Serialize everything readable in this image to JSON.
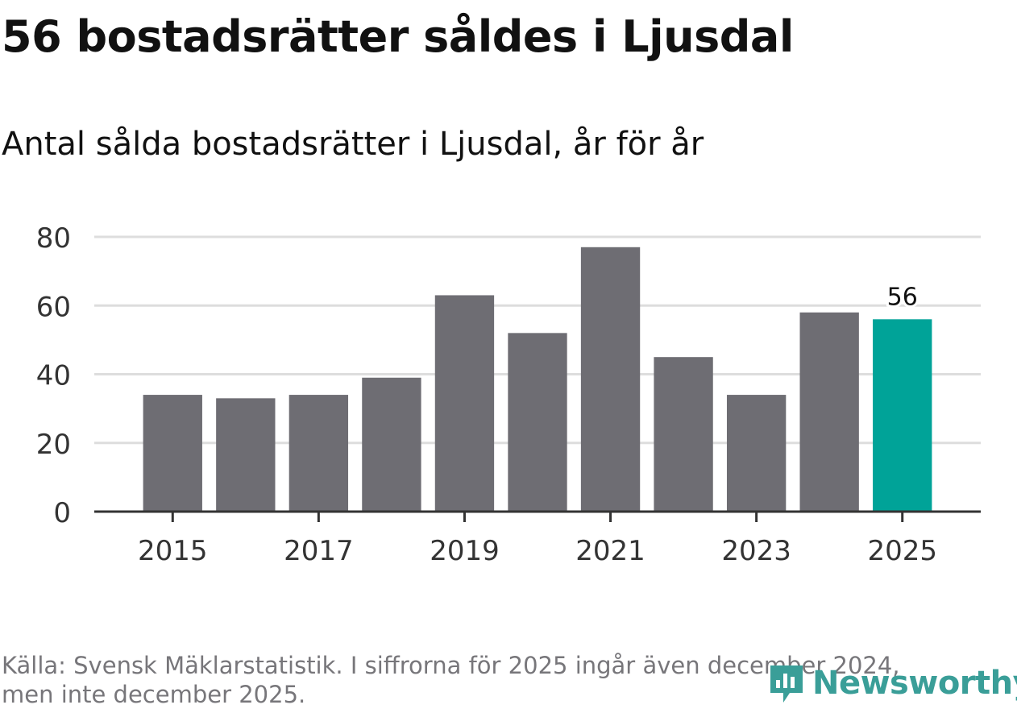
{
  "title": "56 bostadsrätter såldes i Ljusdal",
  "subtitle": "Antal sålda bostadsrätter i Ljusdal, år för år",
  "footer": {
    "source_line1": "Källa: Svensk Mäklarstatistik. I siffrorna för 2025 ingår även december 2024,",
    "source_line2": "men inte december 2025."
  },
  "logo": {
    "text": "Newsworthy",
    "icon": "newsworthy-logo-icon",
    "color": "#3a9e98"
  },
  "colors": {
    "bar": "#6e6d73",
    "highlight": "#00a398",
    "grid": "#dddddd",
    "axis": "#333333",
    "label": "#333333"
  },
  "chart_data": {
    "type": "bar",
    "title": "56 bostadsrätter såldes i Ljusdal",
    "subtitle": "Antal sålda bostadsrätter i Ljusdal, år för år",
    "categories": [
      "2015",
      "2016",
      "2017",
      "2018",
      "2019",
      "2020",
      "2021",
      "2022",
      "2023",
      "2024",
      "2025"
    ],
    "values": [
      34,
      33,
      34,
      39,
      63,
      52,
      77,
      45,
      34,
      58,
      56
    ],
    "xticks": [
      "2015",
      "2017",
      "2019",
      "2021",
      "2023",
      "2025"
    ],
    "yticks": [
      0,
      20,
      40,
      60,
      80
    ],
    "ylim": [
      0,
      80
    ],
    "grid": true,
    "highlight_index": 10,
    "highlight_label": "56",
    "xlabel": "",
    "ylabel": ""
  }
}
